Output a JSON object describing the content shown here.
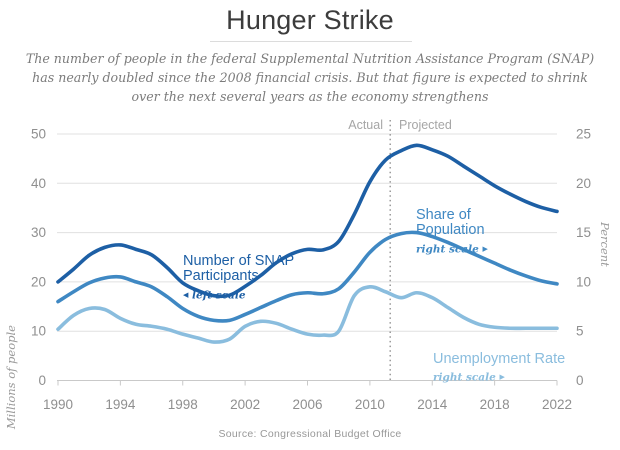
{
  "header": {
    "title": "Hunger Strike",
    "subtitle": "The number of people in the federal Supplemental Nutrition Assistance Program (SNAP)\nhas nearly doubled since the 2008 financial crisis. But that figure is expected to shrink\nover the next several years as the economy strengthens"
  },
  "source": "Source: Congressional Budget Office",
  "chart_data": {
    "type": "line",
    "title": "Hunger Strike",
    "x_label": "",
    "x_years": [
      1990,
      1991,
      1992,
      1993,
      1994,
      1995,
      1996,
      1997,
      1998,
      1999,
      2000,
      2001,
      2002,
      2003,
      2004,
      2005,
      2006,
      2007,
      2008,
      2009,
      2010,
      2011,
      2012,
      2013,
      2014,
      2015,
      2016,
      2017,
      2018,
      2019,
      2020,
      2021,
      2022
    ],
    "series": [
      {
        "name": "Number of SNAP Participants",
        "axis": "left",
        "color": "#1d5fa5",
        "values": [
          20.0,
          22.6,
          25.4,
          27.0,
          27.5,
          26.6,
          25.5,
          22.9,
          19.8,
          18.2,
          17.2,
          17.3,
          19.1,
          21.3,
          23.9,
          25.7,
          26.6,
          26.5,
          28.2,
          33.7,
          40.3,
          44.7,
          46.6,
          47.7,
          46.8,
          45.5,
          43.5,
          41.5,
          39.5,
          37.8,
          36.3,
          35.1,
          34.3
        ]
      },
      {
        "name": "Share of Population",
        "axis": "right",
        "color": "#3f88c3",
        "values": [
          8.0,
          9.0,
          9.9,
          10.4,
          10.5,
          10.0,
          9.5,
          8.5,
          7.3,
          6.5,
          6.1,
          6.1,
          6.7,
          7.4,
          8.1,
          8.7,
          8.9,
          8.8,
          9.3,
          11.0,
          13.0,
          14.3,
          14.9,
          15.0,
          14.6,
          14.0,
          13.3,
          12.6,
          11.9,
          11.2,
          10.6,
          10.1,
          9.8
        ]
      },
      {
        "name": "Unemployment Rate",
        "axis": "right",
        "color": "#8abdde",
        "values": [
          5.2,
          6.6,
          7.3,
          7.2,
          6.3,
          5.7,
          5.5,
          5.2,
          4.7,
          4.3,
          3.9,
          4.2,
          5.5,
          6.0,
          5.8,
          5.2,
          4.7,
          4.6,
          5.0,
          8.6,
          9.5,
          9.0,
          8.4,
          8.9,
          8.4,
          7.4,
          6.4,
          5.7,
          5.4,
          5.3,
          5.3,
          5.3,
          5.3
        ]
      }
    ],
    "left_axis": {
      "label": "Millions of people",
      "ticks": [
        0,
        10,
        20,
        30,
        40,
        50
      ],
      "range": [
        0,
        50
      ]
    },
    "right_axis": {
      "label": "Percent",
      "ticks": [
        0,
        5,
        10,
        15,
        20,
        25
      ],
      "range": [
        0,
        25
      ]
    },
    "x_axis": {
      "ticks": [
        1990,
        1994,
        1998,
        2002,
        2006,
        2010,
        2014,
        2018,
        2022
      ],
      "range": [
        1990,
        2022
      ]
    },
    "grid": true,
    "divider": {
      "year": 2011.3,
      "color": "#666666",
      "actual_label": "Actual",
      "projected_label": "Projected"
    },
    "style": {
      "grid_color": "#e0e0e0",
      "axis_color": "#c9c9c9",
      "tick_text_color": "#8f8f8f"
    },
    "annotations": {
      "snap": {
        "label": "Number of SNAP\nParticipants",
        "scale_arrow": "◀",
        "scale_text": "left scale"
      },
      "share": {
        "label": "Share of\nPopulation",
        "scale_text": "right scale",
        "scale_arrow": "▶"
      },
      "unemployment": {
        "label": "Unemployment Rate",
        "scale_text": "right scale",
        "scale_arrow": "▶"
      }
    }
  }
}
